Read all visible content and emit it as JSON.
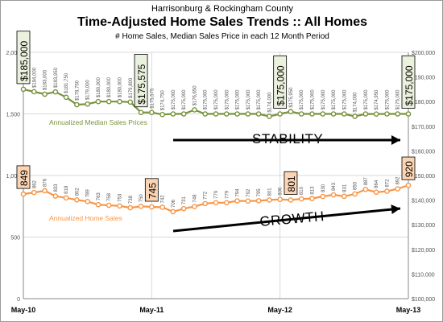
{
  "chart_data": {
    "type": "line",
    "header": {
      "line1": "Harrisonburg & Rockingham County",
      "title": "Time-Adjusted Home Sales Trends  ::  All Homes",
      "subtitle": "# Home Sales, Median Sales Price in each 12 Month Period"
    },
    "x_ticks": [
      "May-10",
      "May-11",
      "May-12",
      "May-13"
    ],
    "left_axis": {
      "ylim": [
        0,
        2000
      ],
      "ticks": [
        "0",
        "500",
        "1,000",
        "1,500",
        "2,000"
      ]
    },
    "right_axis": {
      "ylim": [
        100000,
        200000
      ],
      "ticks": [
        "$100,000",
        "$110,000",
        "$120,000",
        "$130,000",
        "$140,000",
        "$150,000",
        "$160,000",
        "$170,000",
        "$180,000",
        "$190,000",
        "$200,000"
      ]
    },
    "series": [
      {
        "name": "Annualized Median Sales Prices",
        "color": "#77933c",
        "axis": "right",
        "values": [
          185000,
          184000,
          183000,
          183950,
          181750,
          178750,
          179000,
          180000,
          180000,
          180000,
          179800,
          175575,
          175575,
          174750,
          175000,
          175000,
          176650,
          175000,
          175000,
          175000,
          175000,
          175000,
          175000,
          174000,
          175000,
          175950,
          175000,
          175000,
          175000,
          175000,
          175000,
          174000,
          175000,
          174950,
          175000,
          175000,
          175000
        ],
        "labels": [
          "$185,000",
          "$184,000",
          "$183,000",
          "$183,950",
          "$181,750",
          "$178,750",
          "$179,000",
          "$180,000",
          "$180,000",
          "$180,000",
          "$179,800",
          "$175,575",
          "$175,575",
          "$174,750",
          "$175,000",
          "$175,000",
          "$176,650",
          "$175,000",
          "$175,000",
          "$175,000",
          "$175,000",
          "$175,000",
          "$175,000",
          "$174,000",
          "$175,000",
          "$175,950",
          "$175,000",
          "$175,000",
          "$175,000",
          "$175,000",
          "$175,000",
          "$174,000",
          "$175,000",
          "$174,950",
          "$175,000",
          "$175,000",
          "$175,000"
        ],
        "highlight": [
          0,
          11,
          24,
          36
        ]
      },
      {
        "name": "Annualized Home Sales",
        "color": "#f79646",
        "axis": "left",
        "values": [
          849,
          862,
          876,
          833,
          818,
          802,
          789,
          763,
          758,
          753,
          738,
          750,
          745,
          742,
          706,
          731,
          748,
          772,
          779,
          779,
          794,
          792,
          795,
          801,
          806,
          801,
          810,
          813,
          830,
          843,
          831,
          850,
          887,
          864,
          872,
          892,
          920
        ],
        "labels": [
          "849",
          "862",
          "876",
          "833",
          "818",
          "802",
          "789",
          "763",
          "758",
          "753",
          "738",
          "750",
          "745",
          "742",
          "706",
          "731",
          "748",
          "772",
          "779",
          "779",
          "794",
          "792",
          "795",
          "801",
          "806",
          "801",
          "810",
          "813",
          "830",
          "843",
          "831",
          "850",
          "887",
          "864",
          "872",
          "892",
          "920"
        ],
        "highlight": [
          0,
          12,
          25,
          36
        ]
      }
    ],
    "annotations": [
      {
        "text": "STABILITY",
        "near": "median-price-line"
      },
      {
        "text": "GROWTH",
        "near": "home-sales-line"
      }
    ]
  }
}
